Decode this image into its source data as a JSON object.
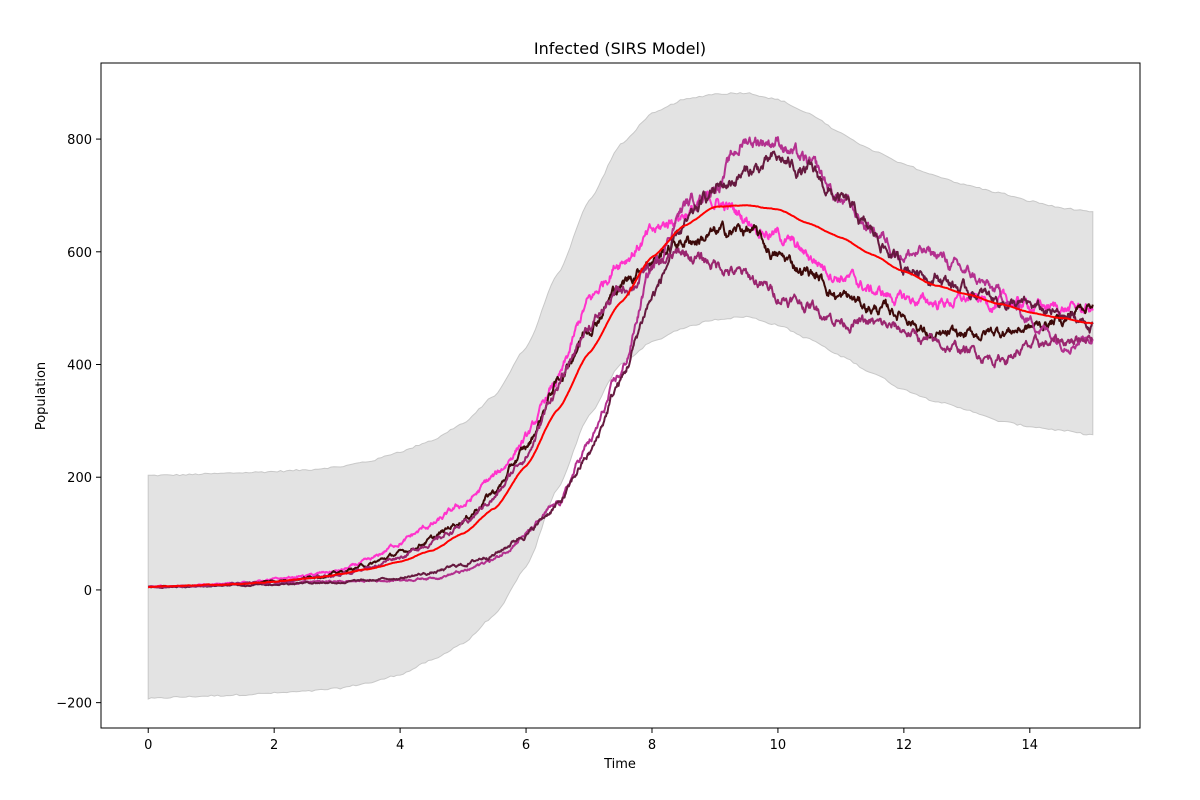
{
  "chart_data": {
    "type": "line",
    "title": "Infected (SIRS Model)",
    "xlabel": "Time",
    "ylabel": "Population",
    "xlim": [
      -0.75,
      15.75
    ],
    "ylim": [
      -245,
      935
    ],
    "xticks": [
      0,
      2,
      4,
      6,
      8,
      10,
      12,
      14
    ],
    "yticks": [
      -200,
      0,
      200,
      400,
      600,
      800
    ],
    "ytick_labels": [
      "−200",
      "0",
      "200",
      "400",
      "600",
      "800"
    ],
    "grid": false,
    "legend": "none",
    "band": {
      "color": "#e3e3e3",
      "edge_color": "#c8c8c8",
      "x": [
        0,
        0.5,
        1,
        1.5,
        2,
        2.5,
        3,
        3.5,
        4,
        4.5,
        5,
        5.5,
        6,
        6.5,
        7,
        7.5,
        8,
        8.5,
        9,
        9.5,
        10,
        10.5,
        11,
        11.5,
        12,
        12.5,
        13,
        13.5,
        14,
        14.5,
        15
      ],
      "upper": [
        203,
        204,
        206,
        208,
        210,
        213,
        218,
        228,
        245,
        265,
        295,
        345,
        430,
        560,
        690,
        790,
        845,
        870,
        880,
        882,
        870,
        845,
        810,
        780,
        755,
        735,
        718,
        705,
        690,
        678,
        670
      ],
      "lower": [
        -193,
        -190,
        -188,
        -186,
        -183,
        -180,
        -175,
        -165,
        -150,
        -125,
        -95,
        -45,
        40,
        180,
        310,
        400,
        440,
        465,
        480,
        485,
        470,
        445,
        415,
        385,
        355,
        335,
        320,
        300,
        290,
        283,
        275
      ]
    },
    "x": [
      0,
      0.5,
      1,
      1.5,
      2,
      2.5,
      3,
      3.5,
      4,
      4.5,
      5,
      5.5,
      6,
      6.5,
      7,
      7.5,
      8,
      8.5,
      9,
      9.5,
      10,
      10.5,
      11,
      11.5,
      12,
      12.5,
      13,
      13.5,
      14,
      14.5,
      15
    ],
    "series": [
      {
        "color": "#ff0000",
        "values": [
          5,
          7,
          9,
          11,
          15,
          20,
          27,
          37,
          50,
          70,
          100,
          145,
          220,
          320,
          420,
          510,
          590,
          645,
          680,
          683,
          675,
          650,
          625,
          595,
          565,
          540,
          525,
          508,
          493,
          482,
          473
        ]
      },
      {
        "color": "#ff33cc",
        "values": [
          5,
          7,
          9,
          13,
          18,
          25,
          33,
          50,
          85,
          115,
          150,
          200,
          270,
          370,
          510,
          590,
          630,
          670,
          690,
          660,
          630,
          590,
          560,
          530,
          515,
          510,
          515,
          510,
          505,
          500,
          498
        ]
      },
      {
        "color": "#3d0a0a",
        "values": [
          5,
          6,
          8,
          11,
          16,
          22,
          30,
          45,
          65,
          90,
          125,
          175,
          250,
          370,
          470,
          540,
          590,
          620,
          630,
          640,
          590,
          565,
          520,
          500,
          490,
          445,
          450,
          460,
          465,
          480,
          515
        ]
      },
      {
        "color": "#b3308f",
        "values": [
          5,
          6,
          8,
          10,
          12,
          14,
          15,
          16,
          18,
          22,
          32,
          55,
          100,
          150,
          260,
          380,
          570,
          680,
          720,
          800,
          800,
          750,
          690,
          640,
          600,
          595,
          560,
          525,
          480,
          445,
          455
        ]
      },
      {
        "color": "#661a40",
        "values": [
          5,
          6,
          7,
          9,
          11,
          13,
          14,
          16,
          22,
          30,
          45,
          65,
          100,
          150,
          240,
          370,
          520,
          640,
          710,
          740,
          760,
          740,
          690,
          630,
          575,
          560,
          530,
          515,
          500,
          485,
          470
        ]
      },
      {
        "color": "#99266f",
        "values": [
          5,
          6,
          8,
          11,
          15,
          20,
          27,
          40,
          60,
          85,
          115,
          165,
          240,
          360,
          470,
          530,
          570,
          595,
          580,
          555,
          525,
          505,
          480,
          470,
          460,
          435,
          425,
          410,
          430,
          440,
          455
        ]
      }
    ]
  }
}
